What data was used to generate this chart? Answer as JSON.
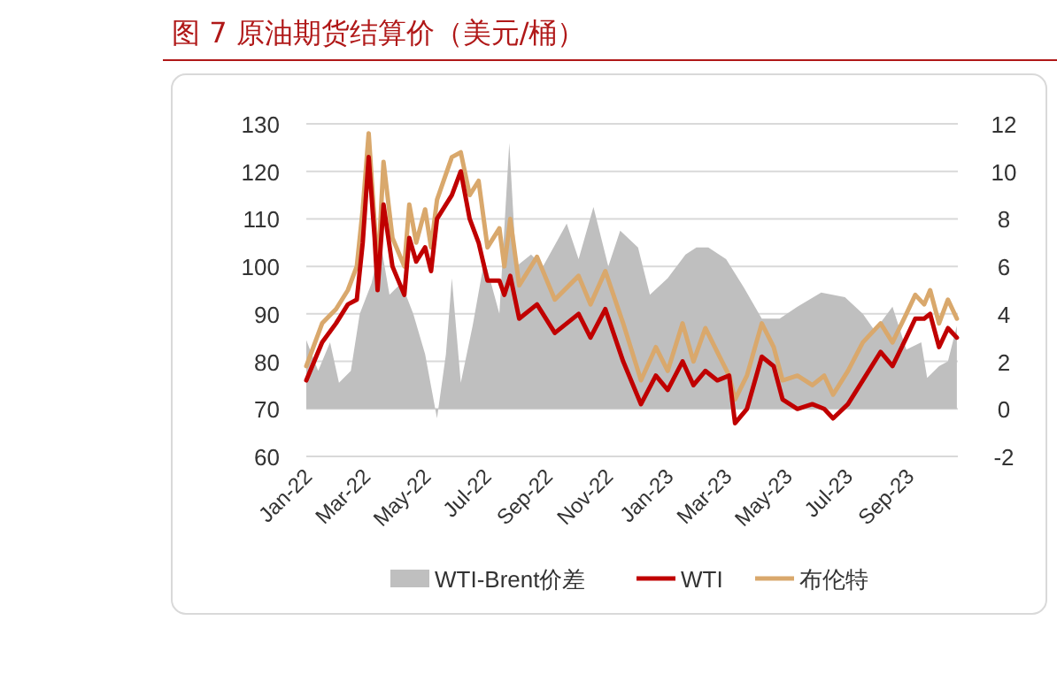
{
  "chart_data": {
    "type": "line",
    "title": "图 7   原油期货结算价（美元/桶）",
    "xlim": [
      "2022-01-01",
      "2023-10-21"
    ],
    "xticks": [
      {
        "value": "2022-01-01",
        "label": "Jan-22"
      },
      {
        "value": "2022-03-01",
        "label": "Mar-22"
      },
      {
        "value": "2022-05-01",
        "label": "May-22"
      },
      {
        "value": "2022-07-01",
        "label": "Jul-22"
      },
      {
        "value": "2022-09-01",
        "label": "Sep-22"
      },
      {
        "value": "2022-11-01",
        "label": "Nov-22"
      },
      {
        "value": "2023-01-01",
        "label": "Jan-23"
      },
      {
        "value": "2023-03-01",
        "label": "Mar-23"
      },
      {
        "value": "2023-05-01",
        "label": "May-23"
      },
      {
        "value": "2023-07-01",
        "label": "Jul-23"
      },
      {
        "value": "2023-09-01",
        "label": "Sep-23"
      }
    ],
    "ylim": [
      60,
      130
    ],
    "yticks": [
      60,
      70,
      80,
      90,
      100,
      110,
      120,
      130
    ],
    "y2lim": [
      -2,
      12
    ],
    "y2ticks": [
      -2,
      0,
      2,
      4,
      6,
      8,
      10,
      12
    ],
    "grid": "y",
    "legend": "bottom",
    "x": [
      "2022-01-01",
      "2022-01-17",
      "2022-01-31",
      "2022-02-12",
      "2022-02-21",
      "2022-02-27",
      "2022-03-05",
      "2022-03-11",
      "2022-03-14",
      "2022-03-20",
      "2022-03-29",
      "2022-04-10",
      "2022-04-15",
      "2022-04-22",
      "2022-05-01",
      "2022-05-07",
      "2022-05-13",
      "2022-05-28",
      "2022-06-06",
      "2022-06-15",
      "2022-06-24",
      "2022-07-03",
      "2022-07-15",
      "2022-07-20",
      "2022-07-26",
      "2022-08-04",
      "2022-08-22",
      "2022-09-09",
      "2022-10-03",
      "2022-10-15",
      "2022-10-30",
      "2022-11-17",
      "2022-12-05",
      "2022-12-20",
      "2023-01-01",
      "2023-01-16",
      "2023-01-27",
      "2023-02-08",
      "2023-02-20",
      "2023-03-04",
      "2023-03-10",
      "2023-03-22",
      "2023-04-06",
      "2023-04-18",
      "2023-04-27",
      "2023-05-12",
      "2023-05-27",
      "2023-06-08",
      "2023-06-17",
      "2023-07-02",
      "2023-07-17",
      "2023-08-04",
      "2023-08-16",
      "2023-08-30",
      "2023-09-08",
      "2023-09-17",
      "2023-09-23",
      "2023-10-02",
      "2023-10-11",
      "2023-10-20"
    ],
    "series": [
      {
        "name": "WTI-Brent价差",
        "type": "area",
        "axis": "y2",
        "color": "#bfbfbf",
        "x": [
          "2022-01-01",
          "2022-01-13",
          "2022-01-25",
          "2022-02-03",
          "2022-02-15",
          "2022-02-24",
          "2022-03-08",
          "2022-03-17",
          "2022-03-26",
          "2022-04-07",
          "2022-04-19",
          "2022-05-01",
          "2022-05-13",
          "2022-05-22",
          "2022-05-28",
          "2022-06-06",
          "2022-06-18",
          "2022-06-30",
          "2022-07-15",
          "2022-07-25",
          "2022-08-01",
          "2022-08-16",
          "2022-08-28",
          "2022-09-21",
          "2022-10-03",
          "2022-10-18",
          "2022-11-02",
          "2022-11-14",
          "2022-12-02",
          "2022-12-14",
          "2023-01-01",
          "2023-01-19",
          "2023-01-30",
          "2023-02-11",
          "2023-03-01",
          "2023-03-19",
          "2023-04-06",
          "2023-04-24",
          "2023-05-12",
          "2023-06-05",
          "2023-06-29",
          "2023-07-17",
          "2023-07-29",
          "2023-08-16",
          "2023-08-30",
          "2023-09-14",
          "2023-09-20",
          "2023-10-02",
          "2023-10-11",
          "2023-10-20"
        ],
        "values": [
          2.9,
          1.6,
          2.8,
          1.1,
          1.6,
          4.0,
          5.3,
          7.0,
          4.8,
          5.3,
          4.0,
          2.3,
          -0.4,
          2.3,
          5.5,
          1.1,
          3.5,
          6.3,
          4.0,
          11.2,
          6.0,
          6.5,
          6.0,
          7.8,
          6.3,
          8.5,
          6.0,
          7.5,
          6.8,
          4.8,
          5.5,
          6.5,
          6.8,
          6.8,
          6.3,
          5.1,
          3.8,
          3.8,
          4.3,
          4.9,
          4.7,
          4.0,
          3.3,
          4.3,
          2.5,
          2.8,
          1.3,
          1.8,
          2.0,
          3.5
        ]
      },
      {
        "name": "WTI",
        "color": "#c00000",
        "values": [
          76,
          84,
          88,
          92,
          93,
          105,
          123,
          106,
          95,
          113,
          100,
          94,
          106,
          101,
          104,
          99,
          110,
          115,
          120,
          110,
          105,
          97,
          97,
          94,
          98,
          89,
          92,
          86,
          90,
          85,
          91,
          80,
          71,
          77,
          74,
          80,
          75,
          78,
          76,
          77,
          67,
          70,
          81,
          79,
          72,
          70,
          71,
          70,
          68,
          71,
          76,
          82,
          79,
          85,
          89,
          89,
          90,
          83,
          87,
          85
        ]
      },
      {
        "name": "布伦特",
        "color": "#d9a86c",
        "values": [
          79,
          88,
          91,
          95,
          100,
          112,
          128,
          109,
          98,
          122,
          106,
          100,
          113,
          105,
          112,
          104,
          114,
          123,
          124,
          115,
          118,
          104,
          108,
          100,
          110,
          96,
          102,
          93,
          98,
          92,
          99,
          88,
          76,
          83,
          78,
          88,
          80,
          87,
          82,
          77,
          72,
          77,
          88,
          83,
          76,
          77,
          75,
          77,
          73,
          78,
          84,
          88,
          84,
          90,
          94,
          92,
          95,
          88,
          93,
          89
        ]
      }
    ]
  }
}
